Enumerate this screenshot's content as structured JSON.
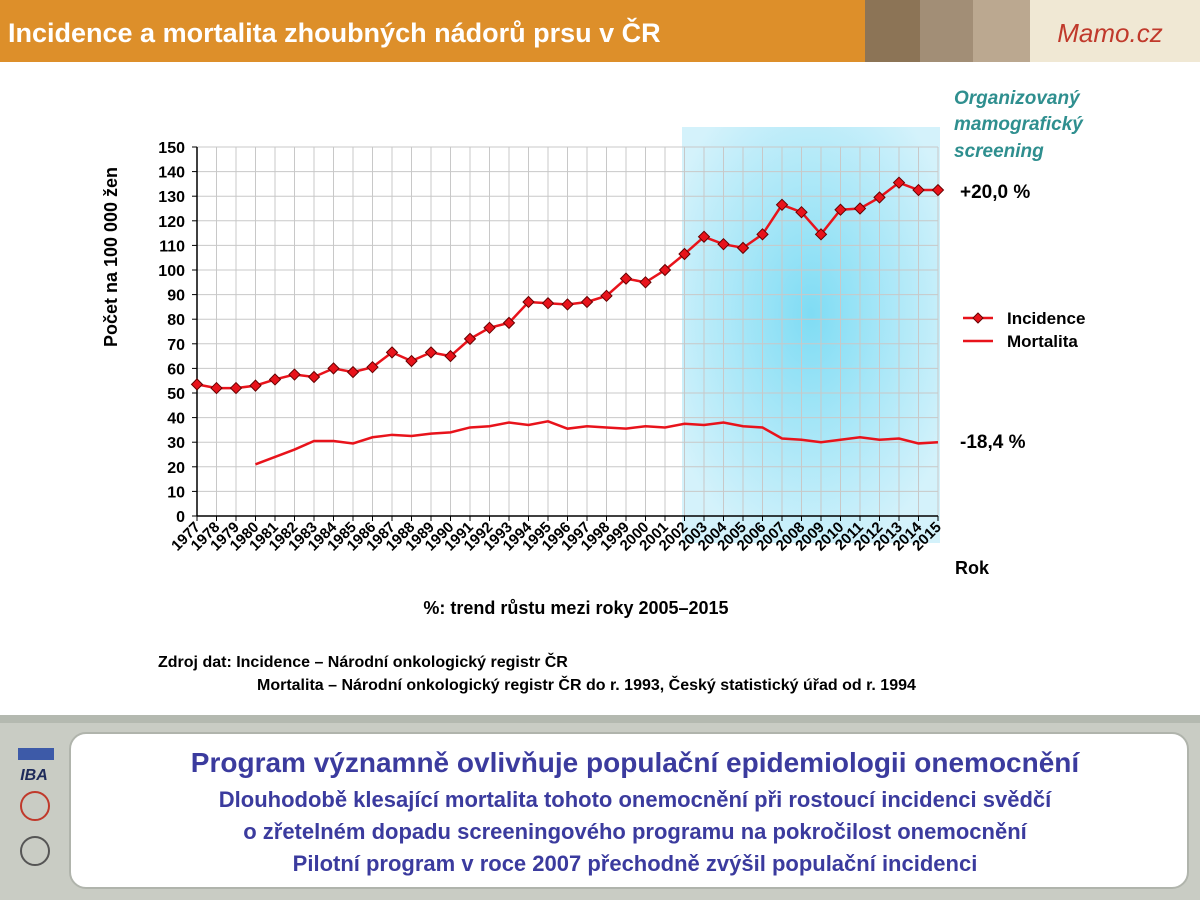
{
  "header": {
    "title": "Incidence a mortalita zhoubných nádorů prsu v ČR",
    "logo": "Mamo.cz"
  },
  "chart_data": {
    "type": "line",
    "categories": [
      "1977",
      "1978",
      "1979",
      "1980",
      "1981",
      "1982",
      "1983",
      "1984",
      "1985",
      "1986",
      "1987",
      "1988",
      "1989",
      "1990",
      "1991",
      "1992",
      "1993",
      "1994",
      "1995",
      "1996",
      "1997",
      "1998",
      "1999",
      "2000",
      "2001",
      "2002",
      "2003",
      "2004",
      "2005",
      "2006",
      "2007",
      "2008",
      "2009",
      "2010",
      "2011",
      "2012",
      "2013",
      "2014",
      "2015"
    ],
    "series": [
      {
        "name": "Incidence",
        "color": "#e8131b",
        "marker": "diamond",
        "values": [
          53.5,
          52,
          52,
          53,
          55.5,
          57.5,
          56.5,
          60,
          58.5,
          60.5,
          66.5,
          63,
          66.5,
          65,
          72,
          76.5,
          78.5,
          87,
          86.5,
          86,
          87,
          89.5,
          96.5,
          95,
          100,
          106.5,
          113.5,
          110.5,
          109,
          114.5,
          126.5,
          123.5,
          114.5,
          124.5,
          125,
          129.5,
          135.5,
          132.5,
          132.5
        ]
      },
      {
        "name": "Mortalita",
        "color": "#e8131b",
        "values": [
          null,
          null,
          null,
          21,
          24,
          27,
          30.5,
          30.5,
          29.5,
          32,
          33,
          32.5,
          33.5,
          34,
          36,
          36.5,
          38,
          37,
          38.5,
          35.5,
          36.5,
          36,
          35.5,
          36.5,
          36,
          37.5,
          37,
          38,
          36.5,
          36,
          31.5,
          31,
          30,
          31,
          32,
          31,
          31.5,
          29.5,
          30
        ]
      }
    ],
    "ylim": [
      0,
      150
    ],
    "yticks": [
      0,
      10,
      20,
      30,
      40,
      50,
      60,
      70,
      80,
      90,
      100,
      110,
      120,
      130,
      140,
      150
    ],
    "grid": true,
    "y_label": "Počet  na 100 000 žen",
    "x_label": "Rok",
    "annotation": [
      "Organizovaný",
      "mamografický",
      "screening"
    ],
    "trend_labels": [
      "+20,0 %",
      "-18,4 %"
    ],
    "trend_note": "%: trend růstu mezi roky 2005–2015"
  },
  "source": [
    "Zdroj dat: Incidence – Národní onkologický registr ČR",
    "Mortalita – Národní onkologický registr ČR do r. 1993, Český statistický úřad od r. 1994"
  ],
  "summary": {
    "heading": "Program významně ovlivňuje populační epidemiologii onemocnění",
    "lines": [
      "Dlouhodobě klesající mortalita tohoto onemocnění při rostoucí incidenci svědčí",
      "o zřetelném dopadu screeningového programu na pokročilost onemocnění",
      "Pilotní program v roce 2007 přechodně zvýšil populační incidenci"
    ]
  },
  "logos": [
    "IBA"
  ]
}
